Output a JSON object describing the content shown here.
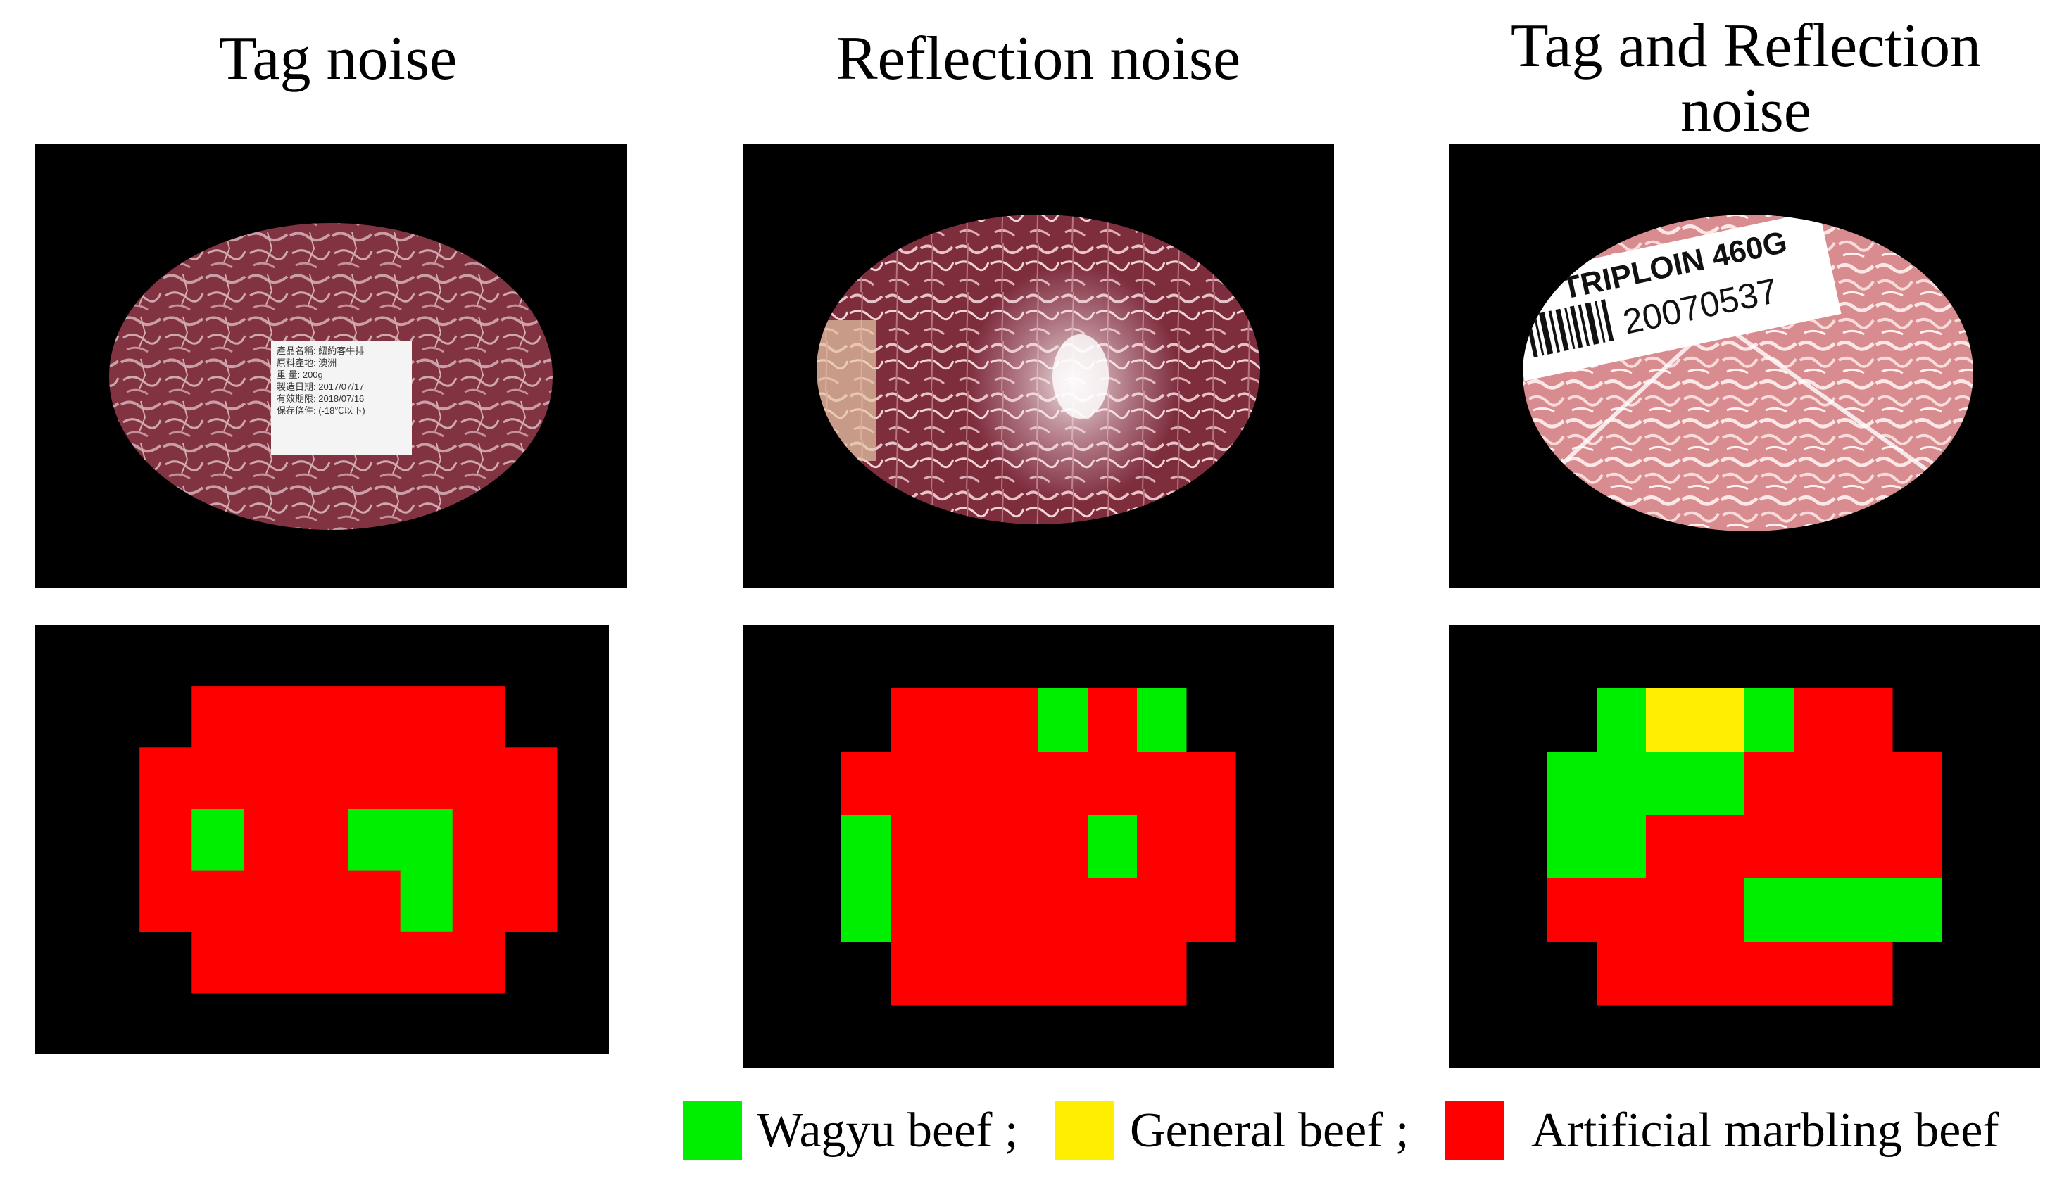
{
  "figure": {
    "columns": [
      {
        "title": "Tag noise",
        "grid": [
          "...........",
          "...RRRRRR..",
          "..RRRRRRRR.",
          "..RGRRGGRR.",
          "..RRRRRGRR.",
          "...RRRRRR..",
          "..........."
        ]
      },
      {
        "title": "Reflection noise",
        "grid": [
          "............",
          "...RRRGRG...",
          "..RRRRRRRR..",
          "..GRRRRGRR..",
          "..GRRRRRRR..",
          "...RRRRRR...",
          "............"
        ]
      },
      {
        "title": "Tag and Reflection\nnoise",
        "grid": [
          "............",
          "...GYYGRR...",
          "..GGGGRRRR..",
          "..GGRRRRRR..",
          "..RRRRGGGG..",
          "...RRRRRR...",
          "............"
        ]
      }
    ],
    "tag1_lines": [
      "產品名稱: 紐約客牛排",
      "原料產地: 澳洲",
      "重    量: 200g",
      "製造日期: 2017/07/17",
      "有效期限: 2018/07/16",
      "保存條件: (-18℃以下)"
    ],
    "tag3": {
      "product": "TRIPLOIN 460G",
      "code": "20070537"
    },
    "legend": [
      {
        "label": "Wagyu beef ;",
        "color": "#00ee00"
      },
      {
        "label": "General beef ;",
        "color": "#ffee00"
      },
      {
        "label": "Artificial marbling beef",
        "color": "#ff0000"
      }
    ],
    "colors": {
      "wagyu": "#00ee00",
      "general": "#ffee00",
      "artificial": "#ff0000",
      "background": "#000000"
    }
  }
}
